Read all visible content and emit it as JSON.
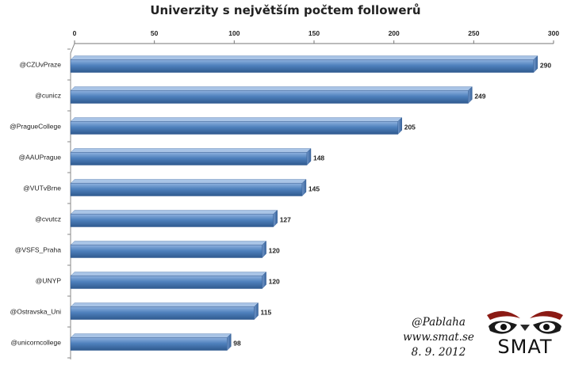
{
  "chart_data": {
    "type": "bar",
    "orientation": "horizontal",
    "title": "Univerzity s největším počtem followerů",
    "categories": [
      "@CZUvPraze",
      "@cunicz",
      "@PragueCollege",
      "@AAUPrague",
      "@VUTvBrne",
      "@cvutcz",
      "@VSFS_Praha",
      "@UNYP",
      "@Ostravska_Uni",
      "@unicorncollege"
    ],
    "values": [
      290,
      249,
      205,
      148,
      145,
      127,
      120,
      120,
      115,
      98
    ],
    "xlim": [
      0,
      300
    ],
    "xticks": [
      "0",
      "50",
      "100",
      "150",
      "200",
      "250",
      "300"
    ],
    "x_axis_position": "top",
    "grid": false,
    "legend": "none",
    "bar_color": "#4f81bd"
  },
  "credits": {
    "author": "@Pablaha",
    "website": "www.smat.se",
    "date": "8. 9. 2012"
  },
  "logo": {
    "text": "SMAT",
    "icon": "owl-eyes-icon"
  }
}
